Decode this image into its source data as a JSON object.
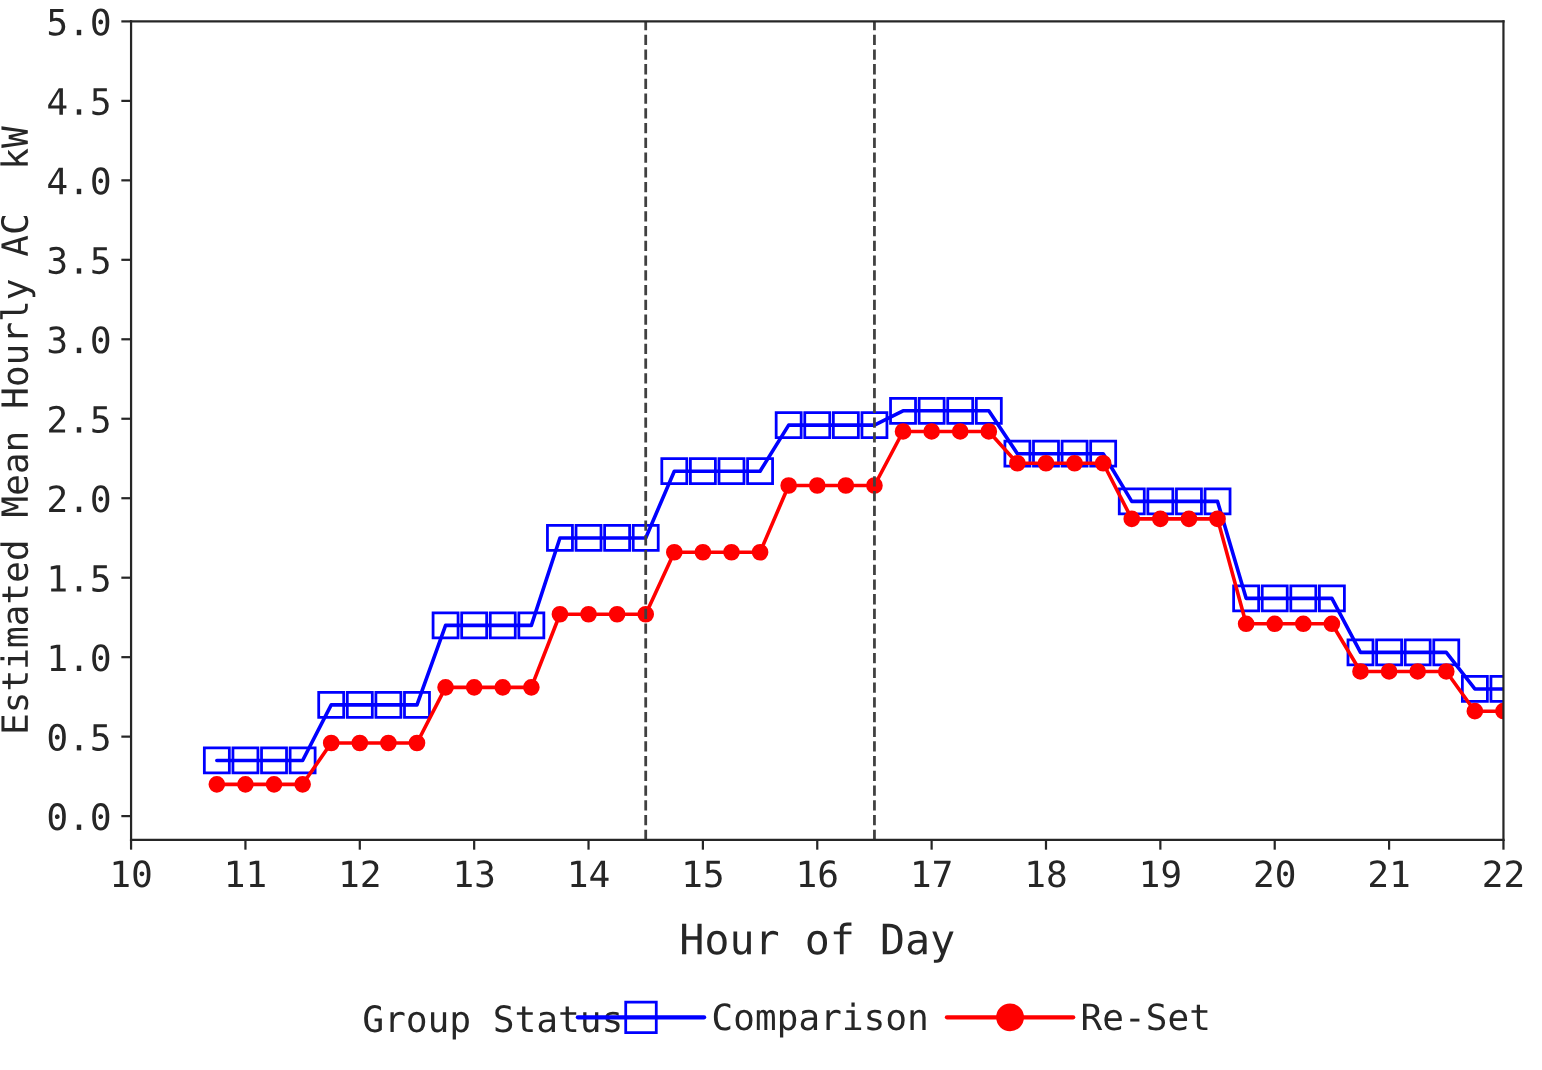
{
  "chart_data": {
    "type": "line",
    "xlabel": "Hour of Day",
    "ylabel": "Estimated Mean Hourly AC  kW",
    "legend_title": "Group Status",
    "xlim": [
      10,
      22
    ],
    "xticks": [
      10,
      11,
      12,
      13,
      14,
      15,
      16,
      17,
      18,
      19,
      20,
      21,
      22
    ],
    "ylim": [
      -0.15,
      5.0
    ],
    "yticks": [
      {
        "value": 0,
        "label": "0.0"
      },
      {
        "value": 0.5,
        "label": "0.5"
      },
      {
        "value": 1,
        "label": "1.0"
      },
      {
        "value": 1.5,
        "label": "1.5"
      },
      {
        "value": 2,
        "label": "2.0"
      },
      {
        "value": 2.5,
        "label": "2.5"
      },
      {
        "value": 3,
        "label": "3.0"
      },
      {
        "value": 3.5,
        "label": "3.5"
      },
      {
        "value": 4,
        "label": "4.0"
      },
      {
        "value": 4.5,
        "label": "4.5"
      },
      {
        "value": 5,
        "label": "5.0"
      }
    ],
    "grid": false,
    "legend": "bottom",
    "ref_lines": [
      {
        "axis": "x",
        "value": 14.5,
        "line_style": "dashed",
        "color": "#404040"
      },
      {
        "axis": "x",
        "value": 16.5,
        "line_style": "dashed",
        "color": "#404040"
      }
    ],
    "series": [
      {
        "name": "Comparison",
        "color": "#0000ff",
        "marker": "square",
        "x": [
          10.75,
          11,
          11.25,
          11.5,
          11.75,
          12,
          12.25,
          12.5,
          12.75,
          13,
          13.25,
          13.5,
          13.75,
          14,
          14.25,
          14.5,
          14.75,
          15,
          15.25,
          15.5,
          15.75,
          16,
          16.25,
          16.5,
          16.75,
          17,
          17.25,
          17.5,
          17.75,
          18,
          18.25,
          18.5,
          18.75,
          19,
          19.25,
          19.5,
          19.75,
          20,
          20.25,
          20.5,
          20.75,
          21,
          21.25,
          21.5,
          21.75,
          22
        ],
        "values": [
          0.35,
          0.35,
          0.35,
          0.35,
          0.7,
          0.7,
          0.7,
          0.7,
          1.2,
          1.2,
          1.2,
          1.2,
          1.75,
          1.75,
          1.75,
          1.75,
          2.17,
          2.17,
          2.17,
          2.17,
          2.46,
          2.46,
          2.46,
          2.46,
          2.55,
          2.55,
          2.55,
          2.55,
          2.28,
          2.28,
          2.28,
          2.28,
          1.98,
          1.98,
          1.98,
          1.98,
          1.37,
          1.37,
          1.37,
          1.37,
          1.03,
          1.03,
          1.03,
          1.03,
          0.8,
          0.8
        ]
      },
      {
        "name": "Re-Set",
        "color": "#ff0000",
        "marker": "circle",
        "x": [
          10.75,
          11,
          11.25,
          11.5,
          11.75,
          12,
          12.25,
          12.5,
          12.75,
          13,
          13.25,
          13.5,
          13.75,
          14,
          14.25,
          14.5,
          14.75,
          15,
          15.25,
          15.5,
          15.75,
          16,
          16.25,
          16.5,
          16.75,
          17,
          17.25,
          17.5,
          17.75,
          18,
          18.25,
          18.5,
          18.75,
          19,
          19.25,
          19.5,
          19.75,
          20,
          20.25,
          20.5,
          20.75,
          21,
          21.25,
          21.5,
          21.75,
          22
        ],
        "values": [
          0.2,
          0.2,
          0.2,
          0.2,
          0.46,
          0.46,
          0.46,
          0.46,
          0.81,
          0.81,
          0.81,
          0.81,
          1.27,
          1.27,
          1.27,
          1.27,
          1.66,
          1.66,
          1.66,
          1.66,
          2.08,
          2.08,
          2.08,
          2.08,
          2.42,
          2.42,
          2.42,
          2.42,
          2.22,
          2.22,
          2.22,
          2.22,
          1.87,
          1.87,
          1.87,
          1.87,
          1.21,
          1.21,
          1.21,
          1.21,
          0.91,
          0.91,
          0.91,
          0.91,
          0.66,
          0.66
        ]
      }
    ]
  }
}
